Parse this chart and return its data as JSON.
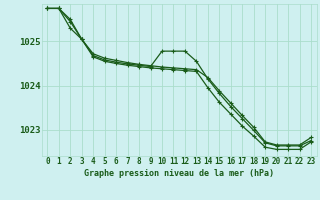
{
  "title": "Graphe pression niveau de la mer (hPa)",
  "background_color": "#cff0f0",
  "grid_color": "#aaddcc",
  "line_color": "#1a5c1a",
  "xlim": [
    -0.5,
    23.5
  ],
  "ylim": [
    1022.4,
    1025.85
  ],
  "yticks": [
    1023,
    1024,
    1025
  ],
  "xticks": [
    0,
    1,
    2,
    3,
    4,
    5,
    6,
    7,
    8,
    9,
    10,
    11,
    12,
    13,
    14,
    15,
    16,
    17,
    18,
    19,
    20,
    21,
    22,
    23
  ],
  "line1_x": [
    0,
    1,
    2,
    3,
    4,
    5,
    6,
    7,
    8,
    9,
    10,
    11,
    12,
    13,
    14,
    15,
    16,
    17,
    18,
    19,
    20,
    21,
    22,
    23
  ],
  "line1_y": [
    1025.75,
    1025.75,
    1025.5,
    1025.05,
    1024.72,
    1024.62,
    1024.57,
    1024.52,
    1024.48,
    1024.45,
    1024.42,
    1024.4,
    1024.38,
    1024.36,
    1024.18,
    1023.88,
    1023.6,
    1023.32,
    1023.05,
    1022.72,
    1022.65,
    1022.65,
    1022.65,
    1022.82
  ],
  "line2_x": [
    0,
    1,
    2,
    3,
    4,
    5,
    6,
    7,
    8,
    9,
    10,
    11,
    12,
    13,
    14,
    15,
    16,
    17,
    18,
    19,
    20,
    21,
    22,
    23
  ],
  "line2_y": [
    1025.75,
    1025.75,
    1025.45,
    1025.05,
    1024.68,
    1024.58,
    1024.53,
    1024.49,
    1024.46,
    1024.43,
    1024.78,
    1024.78,
    1024.78,
    1024.55,
    1024.15,
    1023.82,
    1023.52,
    1023.25,
    1022.98,
    1022.7,
    1022.63,
    1022.63,
    1022.63,
    1022.75
  ],
  "line3_x": [
    0,
    1,
    2,
    3,
    4,
    5,
    6,
    7,
    8,
    9,
    10,
    11,
    12,
    13,
    14,
    15,
    16,
    17,
    18,
    19,
    20,
    21,
    22,
    23
  ],
  "line3_y": [
    1025.75,
    1025.75,
    1025.3,
    1025.05,
    1024.65,
    1024.55,
    1024.5,
    1024.46,
    1024.43,
    1024.4,
    1024.38,
    1024.36,
    1024.34,
    1024.32,
    1023.95,
    1023.62,
    1023.35,
    1023.08,
    1022.85,
    1022.6,
    1022.55,
    1022.55,
    1022.55,
    1022.72
  ],
  "xlabel_fontsize": 6.0,
  "ylabel_fontsize": 6.5,
  "tick_fontsize": 5.5,
  "linewidth": 0.9,
  "markersize": 3.5
}
